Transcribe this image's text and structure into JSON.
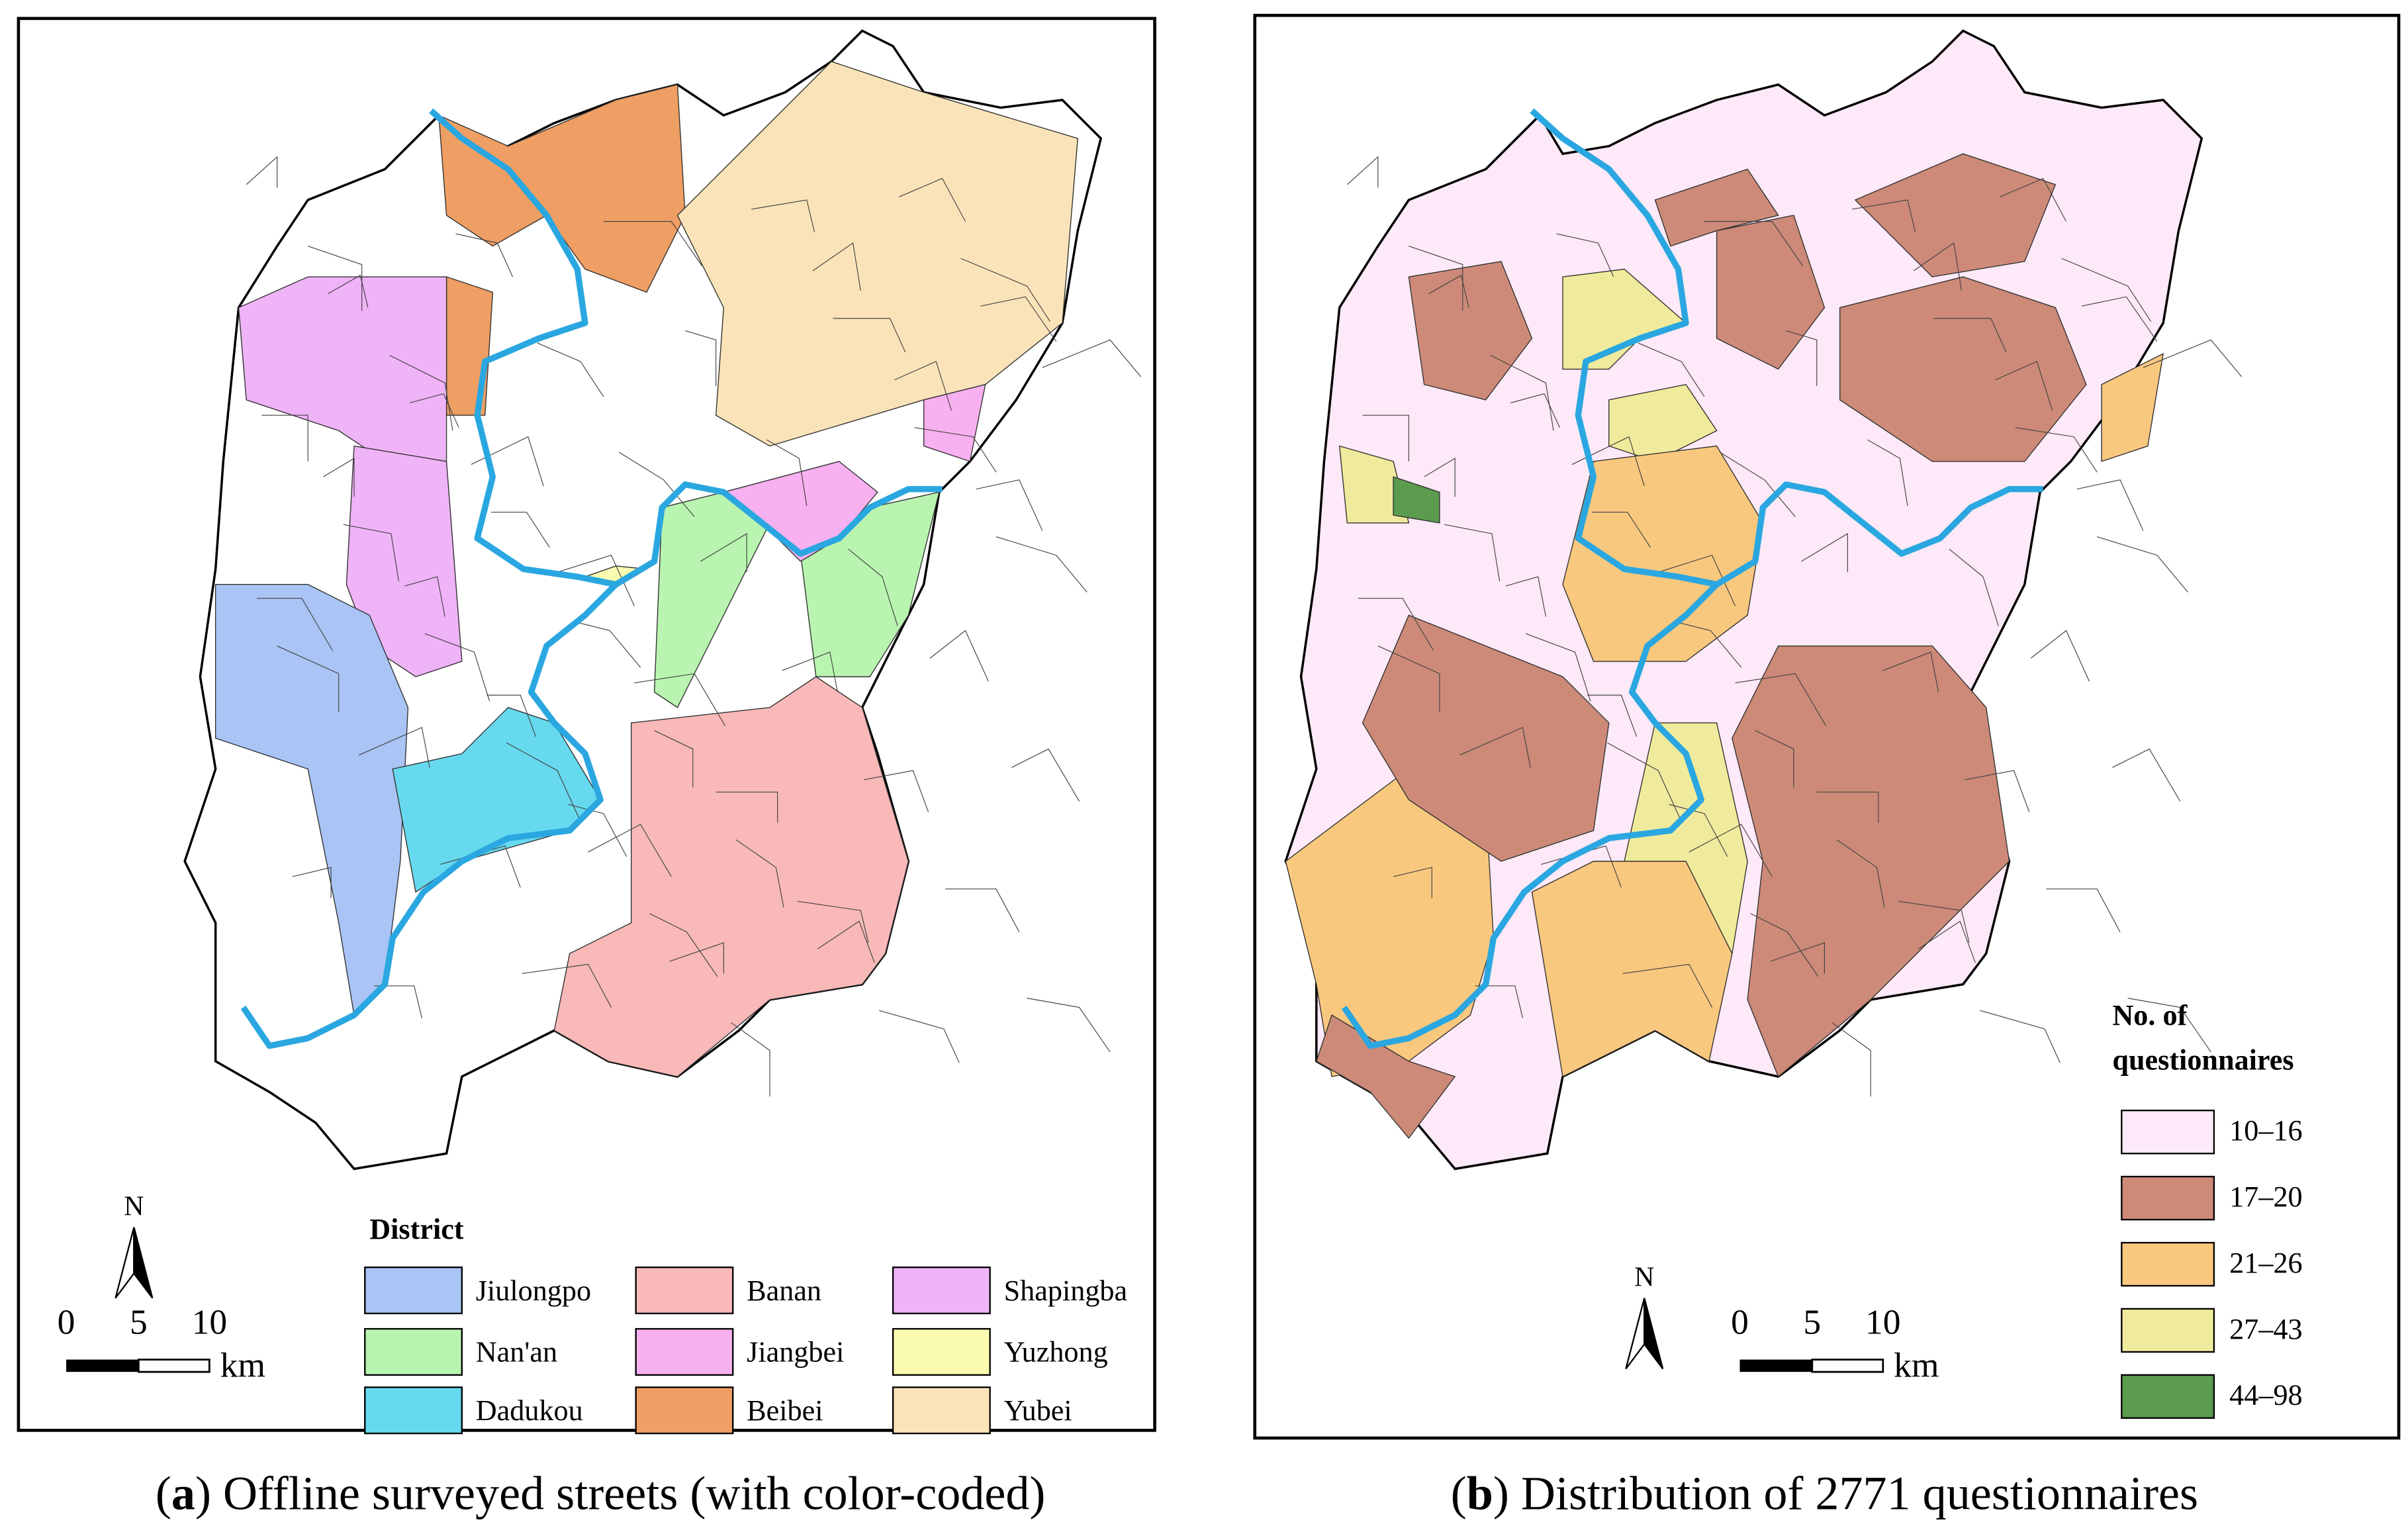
{
  "panel_a": {
    "caption": {
      "open": "(",
      "letter": "a",
      "rest": ") Offline surveyed streets (with color-coded)"
    },
    "legend": {
      "title": "District",
      "items": [
        {
          "label": "Jiulongpo",
          "color": "#a9c4f5"
        },
        {
          "label": "Nan'an",
          "color": "#b9f5b0"
        },
        {
          "label": "Dadukou",
          "color": "#66d9ee"
        },
        {
          "label": "Banan",
          "color": "#f9b9b9"
        },
        {
          "label": "Jiangbei",
          "color": "#f7b0f0"
        },
        {
          "label": "Beibei",
          "color": "#ef9f63"
        },
        {
          "label": "Shapingba",
          "color": "#efb3f7"
        },
        {
          "label": "Yuzhong",
          "color": "#fafab0"
        },
        {
          "label": "Yubei",
          "color": "#fbe3b9"
        }
      ]
    },
    "scale": {
      "labels": [
        "0",
        "5",
        "10"
      ],
      "unit": "km"
    },
    "north": "N"
  },
  "panel_b": {
    "caption": {
      "open": "(",
      "letter": "b",
      "rest": ") Distribution of 2771 questionnaires"
    },
    "legend": {
      "title_lines": [
        "No. of",
        "questionnaires"
      ],
      "items": [
        {
          "label": "10–16",
          "color": "#fde9f7"
        },
        {
          "label": "17–20",
          "color": "#cd8a78"
        },
        {
          "label": "21–26",
          "color": "#f9c87f"
        },
        {
          "label": "27–43",
          "color": "#f0eb9c"
        },
        {
          "label": "44–98",
          "color": "#5a9b4d"
        }
      ]
    },
    "scale": {
      "labels": [
        "0",
        "5",
        "10"
      ],
      "unit": "km"
    },
    "north": "N"
  }
}
